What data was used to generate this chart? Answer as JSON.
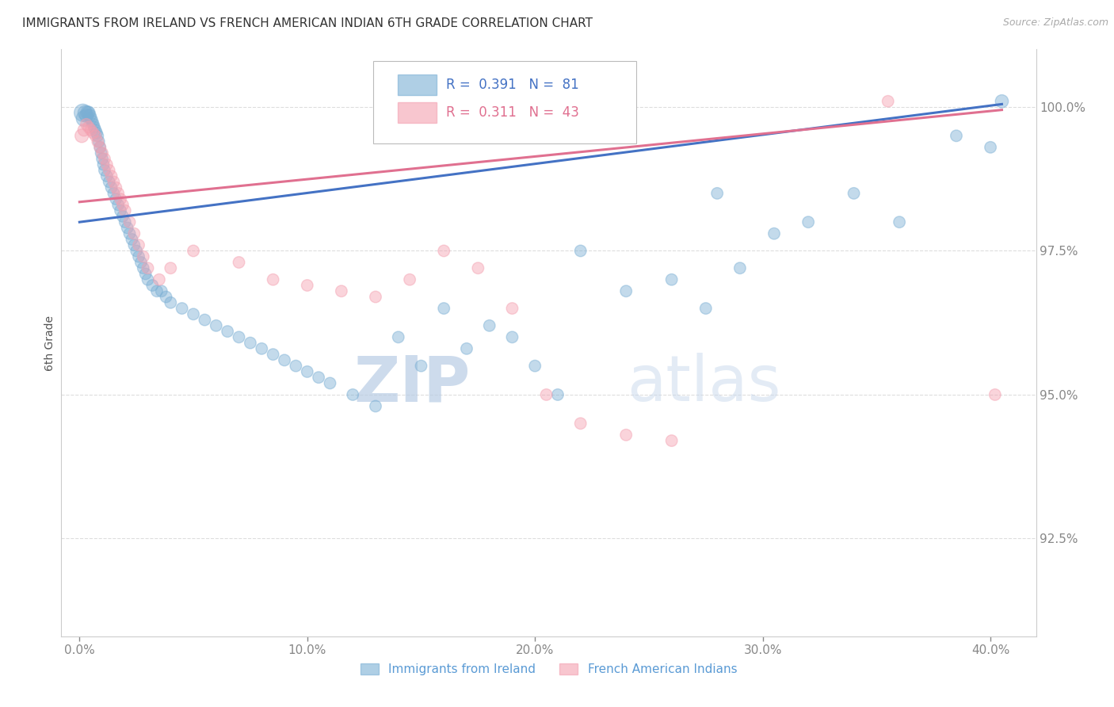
{
  "title": "IMMIGRANTS FROM IRELAND VS FRENCH AMERICAN INDIAN 6TH GRADE CORRELATION CHART",
  "source": "Source: ZipAtlas.com",
  "ylabel": "6th Grade",
  "x_tick_labels": [
    "0.0%",
    "10.0%",
    "20.0%",
    "30.0%",
    "40.0%"
  ],
  "x_ticks": [
    0.0,
    10.0,
    20.0,
    30.0,
    40.0
  ],
  "y_tick_labels": [
    "92.5%",
    "95.0%",
    "97.5%",
    "100.0%"
  ],
  "y_ticks": [
    92.5,
    95.0,
    97.5,
    100.0
  ],
  "xlim": [
    -0.8,
    42.0
  ],
  "ylim": [
    90.8,
    101.0
  ],
  "legend_label_blue": "Immigrants from Ireland",
  "legend_label_pink": "French American Indians",
  "r_blue": 0.391,
  "n_blue": 81,
  "r_pink": 0.311,
  "n_pink": 43,
  "blue_color": "#7BAFD4",
  "pink_color": "#F4A0B0",
  "blue_line_color": "#4472C4",
  "pink_line_color": "#E07090",
  "blue_scatter_x": [
    0.15,
    0.2,
    0.25,
    0.3,
    0.35,
    0.4,
    0.45,
    0.5,
    0.55,
    0.6,
    0.65,
    0.7,
    0.75,
    0.8,
    0.85,
    0.9,
    0.95,
    1.0,
    1.05,
    1.1,
    1.2,
    1.3,
    1.4,
    1.5,
    1.6,
    1.7,
    1.8,
    1.9,
    2.0,
    2.1,
    2.2,
    2.3,
    2.4,
    2.5,
    2.6,
    2.7,
    2.8,
    2.9,
    3.0,
    3.2,
    3.4,
    3.6,
    3.8,
    4.0,
    4.5,
    5.0,
    5.5,
    6.0,
    6.5,
    7.0,
    7.5,
    8.0,
    8.5,
    9.0,
    9.5,
    10.0,
    10.5,
    11.0,
    12.0,
    13.0,
    14.0,
    15.0,
    16.0,
    17.0,
    18.0,
    19.0,
    20.0,
    21.0,
    22.0,
    24.0,
    26.0,
    27.5,
    28.0,
    29.0,
    30.5,
    32.0,
    34.0,
    36.0,
    38.5,
    40.0,
    40.5
  ],
  "blue_scatter_y": [
    99.9,
    99.8,
    99.9,
    99.85,
    99.9,
    99.9,
    99.85,
    99.8,
    99.75,
    99.7,
    99.65,
    99.6,
    99.55,
    99.5,
    99.4,
    99.3,
    99.2,
    99.1,
    99.0,
    98.9,
    98.8,
    98.7,
    98.6,
    98.5,
    98.4,
    98.3,
    98.2,
    98.1,
    98.0,
    97.9,
    97.8,
    97.7,
    97.6,
    97.5,
    97.4,
    97.3,
    97.2,
    97.1,
    97.0,
    96.9,
    96.8,
    96.8,
    96.7,
    96.6,
    96.5,
    96.4,
    96.3,
    96.2,
    96.1,
    96.0,
    95.9,
    95.8,
    95.7,
    95.6,
    95.5,
    95.4,
    95.3,
    95.2,
    95.0,
    94.8,
    96.0,
    95.5,
    96.5,
    95.8,
    96.2,
    96.0,
    95.5,
    95.0,
    97.5,
    96.8,
    97.0,
    96.5,
    98.5,
    97.2,
    97.8,
    98.0,
    98.5,
    98.0,
    99.5,
    99.3,
    100.1
  ],
  "blue_scatter_s": [
    50,
    40,
    35,
    30,
    30,
    28,
    26,
    25,
    24,
    23,
    22,
    22,
    22,
    22,
    22,
    22,
    22,
    22,
    22,
    22,
    22,
    22,
    22,
    22,
    22,
    22,
    22,
    22,
    22,
    22,
    22,
    22,
    22,
    22,
    22,
    22,
    22,
    22,
    22,
    22,
    22,
    22,
    22,
    22,
    22,
    22,
    22,
    22,
    22,
    22,
    22,
    22,
    22,
    22,
    22,
    22,
    22,
    22,
    22,
    22,
    22,
    22,
    22,
    22,
    22,
    22,
    22,
    22,
    22,
    22,
    22,
    22,
    22,
    22,
    22,
    22,
    22,
    22,
    22,
    22,
    28
  ],
  "pink_scatter_x": [
    0.1,
    0.2,
    0.3,
    0.4,
    0.5,
    0.6,
    0.7,
    0.8,
    0.9,
    1.0,
    1.1,
    1.2,
    1.3,
    1.4,
    1.5,
    1.6,
    1.7,
    1.8,
    1.9,
    2.0,
    2.2,
    2.4,
    2.6,
    2.8,
    3.0,
    3.5,
    4.0,
    5.0,
    7.0,
    8.5,
    10.0,
    11.5,
    13.0,
    14.5,
    16.0,
    17.5,
    19.0,
    20.5,
    22.0,
    24.0,
    26.0,
    35.5,
    40.2
  ],
  "pink_scatter_y": [
    99.5,
    99.6,
    99.7,
    99.65,
    99.6,
    99.55,
    99.5,
    99.4,
    99.3,
    99.2,
    99.1,
    99.0,
    98.9,
    98.8,
    98.7,
    98.6,
    98.5,
    98.4,
    98.3,
    98.2,
    98.0,
    97.8,
    97.6,
    97.4,
    97.2,
    97.0,
    97.2,
    97.5,
    97.3,
    97.0,
    96.9,
    96.8,
    96.7,
    97.0,
    97.5,
    97.2,
    96.5,
    95.0,
    94.5,
    94.3,
    94.2,
    100.1,
    95.0
  ],
  "pink_scatter_s": [
    30,
    25,
    22,
    22,
    22,
    22,
    22,
    22,
    22,
    22,
    22,
    22,
    22,
    22,
    22,
    22,
    22,
    22,
    22,
    22,
    22,
    22,
    22,
    22,
    22,
    22,
    22,
    22,
    22,
    22,
    22,
    22,
    22,
    22,
    22,
    22,
    22,
    22,
    22,
    22,
    22,
    22,
    22
  ],
  "blue_reg_x0": 0.0,
  "blue_reg_x1": 40.5,
  "blue_reg_y0": 98.0,
  "blue_reg_y1": 100.05,
  "pink_reg_x0": 0.0,
  "pink_reg_x1": 40.5,
  "pink_reg_y0": 98.35,
  "pink_reg_y1": 99.95,
  "watermark_zip": "ZIP",
  "watermark_atlas": "atlas",
  "background_color": "#ffffff",
  "grid_color": "#dddddd",
  "title_color": "#333333",
  "tick_color": "#5B9BD5",
  "source_color": "#aaaaaa"
}
